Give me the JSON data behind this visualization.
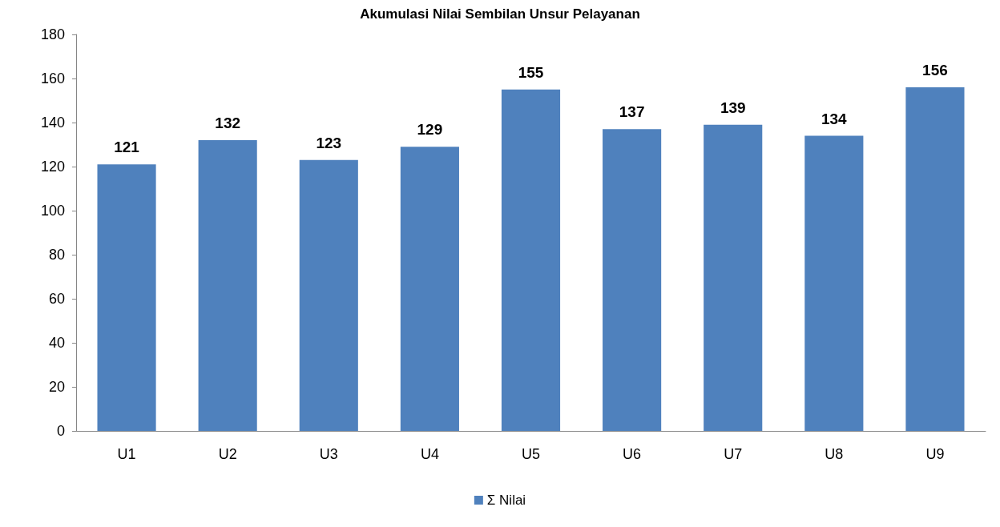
{
  "chart_data": {
    "type": "bar",
    "title": "Akumulasi Nilai Sembilan Unsur Pelayanan",
    "categories": [
      "U1",
      "U2",
      "U3",
      "U4",
      "U5",
      "U6",
      "U7",
      "U8",
      "U9"
    ],
    "series": [
      {
        "name": "Σ Nilai",
        "color": "#4f81bd",
        "values": [
          121,
          132,
          123,
          129,
          155,
          137,
          139,
          134,
          156
        ]
      }
    ],
    "ylim": [
      0,
      180
    ],
    "yticks": [
      0,
      20,
      40,
      60,
      80,
      100,
      120,
      140,
      160,
      180
    ],
    "grid": false,
    "legend": "bottom",
    "data_labels": true
  }
}
